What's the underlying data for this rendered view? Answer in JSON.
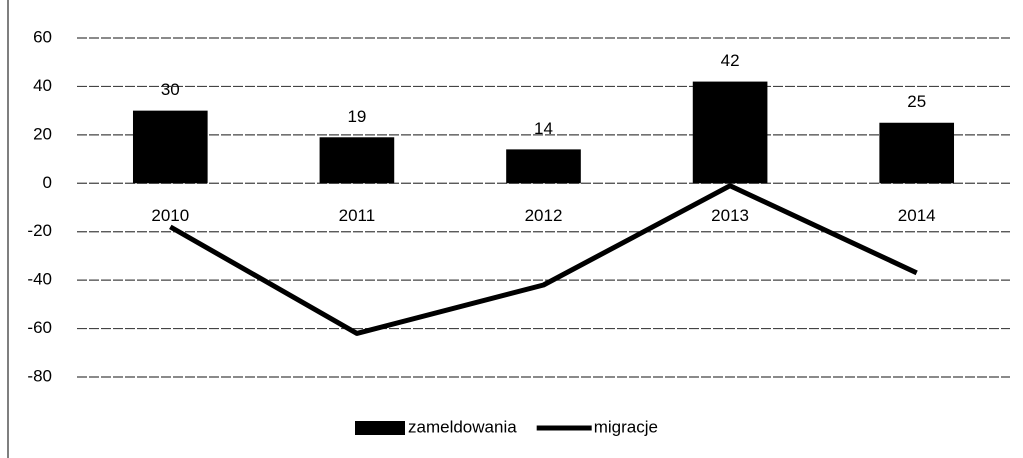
{
  "chart_data": {
    "type": "bar",
    "categories": [
      "2010",
      "2011",
      "2012",
      "2013",
      "2014"
    ],
    "series": [
      {
        "name": "zameldowania",
        "type": "bar",
        "color": "#000000",
        "values": [
          30,
          19,
          14,
          42,
          25
        ]
      },
      {
        "name": "migracje",
        "type": "line",
        "color": "#000000",
        "values": [
          -18,
          -62,
          -42,
          -1,
          -37
        ]
      }
    ],
    "ylim": [
      -80,
      60
    ],
    "yticks": [
      60,
      40,
      20,
      0,
      -20,
      -40,
      -60,
      -80
    ],
    "grid": true,
    "legend": "bottom"
  }
}
